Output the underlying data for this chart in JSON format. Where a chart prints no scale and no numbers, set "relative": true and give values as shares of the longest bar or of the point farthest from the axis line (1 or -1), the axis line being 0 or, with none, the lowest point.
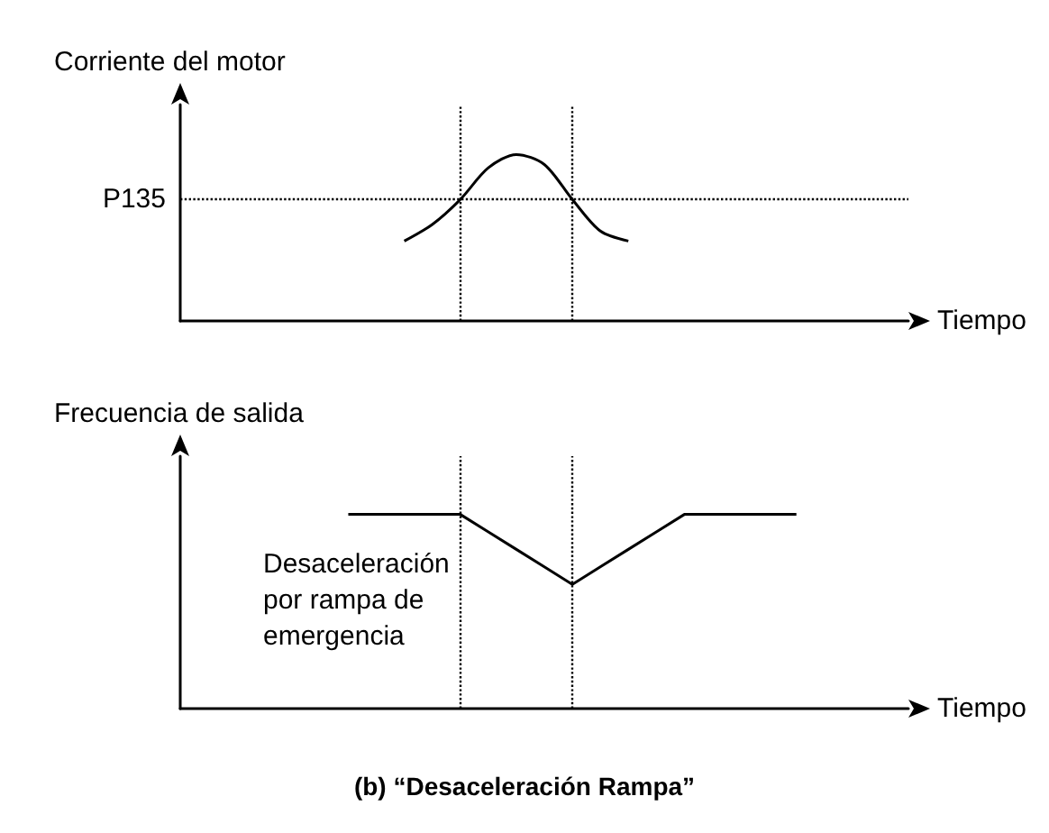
{
  "chart_data": [
    {
      "type": "line",
      "ylabel": "Corriente del motor",
      "xlabel": "Tiempo",
      "relative": true,
      "categories": [
        null,
        null,
        null,
        null,
        null,
        null,
        null,
        null,
        null,
        null,
        null,
        null,
        null,
        null,
        null,
        null,
        null,
        null,
        null,
        null,
        null,
        null,
        null,
        null,
        null,
        null,
        null
      ],
      "series": [
        {
          "color": "#000000",
          "values": [
            null,
            null,
            null,
            null,
            null,
            null,
            null,
            null,
            0.48,
            0.58,
            0.73,
            0.92,
            1,
            0.94,
            0.73,
            0.54,
            0.48,
            null,
            null,
            null,
            null,
            null,
            null,
            null,
            null,
            null,
            null
          ]
        }
      ],
      "ref_lines": [
        {
          "axis": "y",
          "value": 0.73,
          "label": "P135",
          "line_style": "dotted"
        }
      ],
      "marker": "none",
      "grid": false
    },
    {
      "type": "line",
      "ylabel": "Frecuencia de salida",
      "xlabel": "Tiempo",
      "title": "(b) “Desaceleración Rampa”",
      "relative": true,
      "categories": [
        null,
        null,
        null,
        null,
        null,
        null,
        null,
        null,
        null,
        null,
        null,
        null,
        null,
        null,
        null,
        null,
        null,
        null,
        null,
        null,
        null,
        null,
        null,
        null,
        null,
        null,
        null
      ],
      "series": [
        {
          "color": "#000000",
          "values": [
            null,
            null,
            null,
            null,
            null,
            null,
            1,
            1,
            1,
            1,
            1,
            0.91,
            0.82,
            0.73,
            0.64,
            0.73,
            0.82,
            0.91,
            1,
            1,
            1,
            1,
            1,
            null,
            null,
            null,
            null
          ]
        }
      ],
      "annotations": [
        "Desaceleración por rampa de emergencia"
      ],
      "marker": "none",
      "grid": false
    }
  ]
}
